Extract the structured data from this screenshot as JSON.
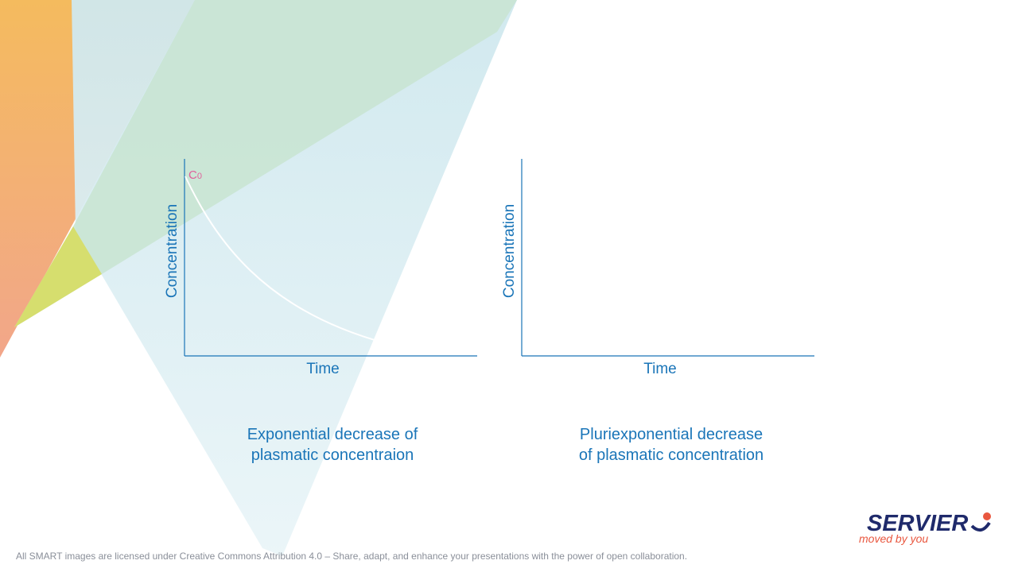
{
  "panels": [
    {
      "y_label": "Concentration",
      "x_label": "Time",
      "c0_label": "C",
      "c0_sub": "0",
      "caption": [
        "Exponential decrease of",
        "plasmatic concentraion"
      ]
    },
    {
      "y_label": "Concentration",
      "x_label": "Time",
      "caption": [
        "Pluriexponential decrease",
        "of plasmatic concentration"
      ]
    }
  ],
  "footer": "All SMART images are licensed under Creative Commons Attribution 4.0 – Share, adapt, and enhance your presentations with the power of open collaboration.",
  "logo": {
    "name": "SERVIER",
    "tagline": "moved by you"
  }
}
